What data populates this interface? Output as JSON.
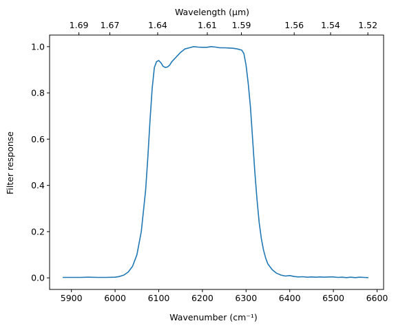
{
  "chart_data": {
    "type": "line",
    "title": "",
    "xlabel": "Wavenumber (cm⁻¹)",
    "ylabel": "Filter response",
    "top_xlabel": "Wavelength (μm)",
    "xlim": [
      5850,
      6615
    ],
    "ylim": [
      -0.05,
      1.05
    ],
    "xticks": [
      5900,
      6000,
      6100,
      6200,
      6300,
      6400,
      6500,
      6600
    ],
    "xtick_labels": [
      "5900",
      "6000",
      "6100",
      "6200",
      "6300",
      "6400",
      "6500",
      "6600"
    ],
    "yticks": [
      0.0,
      0.2,
      0.4,
      0.6,
      0.8,
      1.0
    ],
    "ytick_labels": [
      "0.0",
      "0.2",
      "0.4",
      "0.6",
      "0.8",
      "1.0"
    ],
    "top_ticks": [
      {
        "wavelength": 1.69,
        "label": "1.69"
      },
      {
        "wavelength": 1.67,
        "label": "1.67"
      },
      {
        "wavelength": 1.64,
        "label": "1.64"
      },
      {
        "wavelength": 1.61,
        "label": "1.61"
      },
      {
        "wavelength": 1.59,
        "label": "1.59"
      },
      {
        "wavelength": 1.56,
        "label": "1.56"
      },
      {
        "wavelength": 1.54,
        "label": "1.54"
      },
      {
        "wavelength": 1.52,
        "label": "1.52"
      }
    ],
    "grid": false,
    "color": "#1f77b4",
    "series": [
      {
        "x": [
          5880,
          5920,
          5940,
          5960,
          5980,
          6000,
          6010,
          6020,
          6030,
          6040,
          6050,
          6060,
          6070,
          6075,
          6080,
          6085,
          6090,
          6095,
          6100,
          6105,
          6110,
          6115,
          6120,
          6125,
          6130,
          6140,
          6150,
          6160,
          6170,
          6180,
          6190,
          6200,
          6210,
          6220,
          6230,
          6240,
          6250,
          6260,
          6270,
          6280,
          6290,
          6295,
          6300,
          6305,
          6310,
          6315,
          6320,
          6325,
          6330,
          6335,
          6340,
          6345,
          6350,
          6360,
          6370,
          6380,
          6390,
          6400,
          6410,
          6420,
          6430,
          6440,
          6450,
          6460,
          6470,
          6480,
          6490,
          6500,
          6510,
          6520,
          6530,
          6540,
          6550,
          6560,
          6570,
          6580
        ],
        "y": [
          0.002,
          0.002,
          0.003,
          0.002,
          0.002,
          0.003,
          0.006,
          0.012,
          0.025,
          0.05,
          0.1,
          0.2,
          0.38,
          0.52,
          0.68,
          0.82,
          0.91,
          0.935,
          0.94,
          0.93,
          0.915,
          0.91,
          0.912,
          0.92,
          0.935,
          0.955,
          0.975,
          0.99,
          0.995,
          1.0,
          0.998,
          0.997,
          0.997,
          1.0,
          0.998,
          0.995,
          0.995,
          0.994,
          0.993,
          0.99,
          0.985,
          0.97,
          0.92,
          0.84,
          0.74,
          0.6,
          0.46,
          0.34,
          0.24,
          0.17,
          0.12,
          0.085,
          0.06,
          0.035,
          0.02,
          0.012,
          0.008,
          0.01,
          0.006,
          0.004,
          0.005,
          0.003,
          0.004,
          0.003,
          0.004,
          0.003,
          0.004,
          0.004,
          0.002,
          0.003,
          0.001,
          0.003,
          0.001,
          0.003,
          0.002,
          0.001
        ]
      }
    ]
  }
}
